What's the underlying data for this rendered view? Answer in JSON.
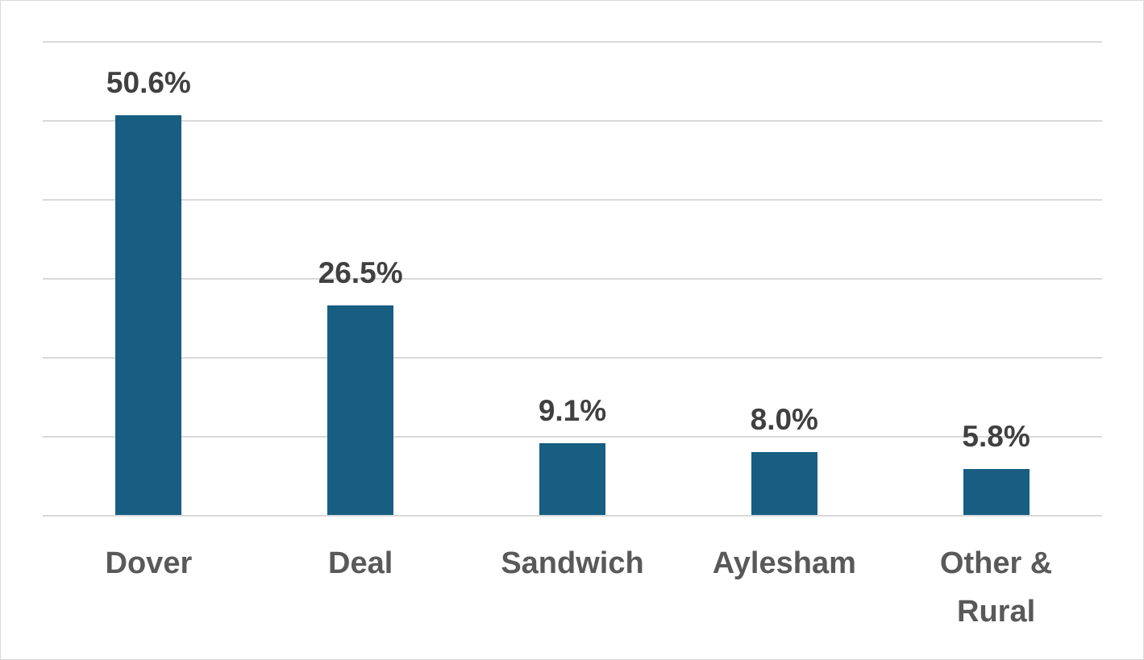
{
  "chart_data": {
    "type": "bar",
    "categories": [
      "Dover",
      "Deal",
      "Sandwich",
      "Aylesham",
      "Other & Rural"
    ],
    "values": [
      50.6,
      26.5,
      9.1,
      8.0,
      5.8
    ],
    "value_labels": [
      "50.6%",
      "26.5%",
      "9.1%",
      "8.0%",
      "5.8%"
    ],
    "color": "#175e82",
    "ylim": [
      0,
      60
    ],
    "yticks": [
      0,
      10,
      20,
      30,
      40,
      50,
      60
    ],
    "grid": true,
    "ytick_labels": false
  }
}
